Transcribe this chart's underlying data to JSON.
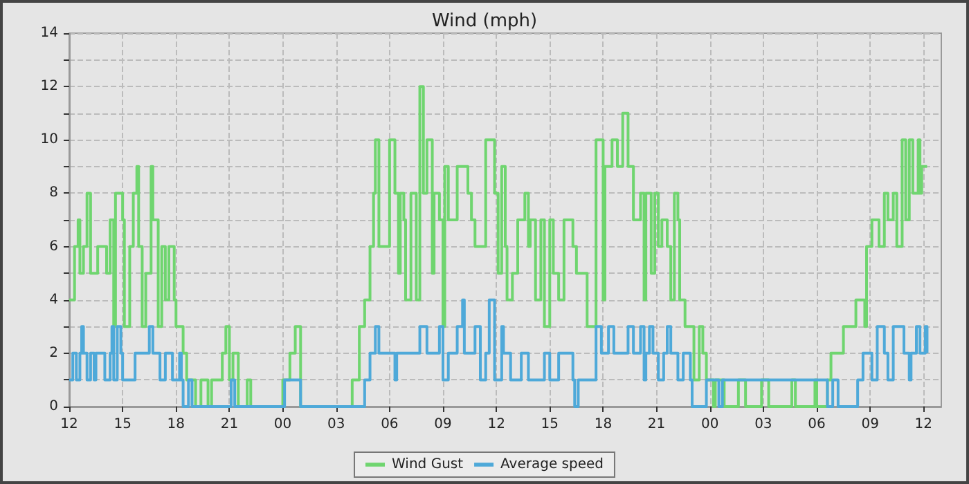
{
  "chart_data": {
    "type": "step",
    "title": "Wind (mph)",
    "xlim": [
      "--01-01T12:00",
      "--01-03T13:00"
    ],
    "xticks": [
      {
        "value": "--01-01T12:00",
        "label": "12"
      },
      {
        "value": "--01-01T15:00",
        "label": "15"
      },
      {
        "value": "--01-01T18:00",
        "label": "18"
      },
      {
        "value": "--01-01T21:00",
        "label": "21"
      },
      {
        "value": "--01-02T00:00",
        "label": "00"
      },
      {
        "value": "--01-02T03:00",
        "label": "03"
      },
      {
        "value": "--01-02T06:00",
        "label": "06"
      },
      {
        "value": "--01-02T09:00",
        "label": "09"
      },
      {
        "value": "--01-02T12:00",
        "label": "12"
      },
      {
        "value": "--01-02T15:00",
        "label": "15"
      },
      {
        "value": "--01-02T18:00",
        "label": "18"
      },
      {
        "value": "--01-02T21:00",
        "label": "21"
      },
      {
        "value": "--01-03T00:00",
        "label": "00"
      },
      {
        "value": "--01-03T03:00",
        "label": "03"
      },
      {
        "value": "--01-03T06:00",
        "label": "06"
      },
      {
        "value": "--01-03T09:00",
        "label": "09"
      },
      {
        "value": "--01-03T12:00",
        "label": "12"
      }
    ],
    "ylim": [
      0,
      14
    ],
    "yticks": [
      0,
      {
        "value": 1,
        "label": null
      },
      2,
      {
        "value": 3,
        "label": null
      },
      4,
      {
        "value": 5,
        "label": null
      },
      6,
      {
        "value": 7,
        "label": null
      },
      8,
      {
        "value": 9,
        "label": null
      },
      10,
      {
        "value": 11,
        "label": null
      },
      12,
      {
        "value": 13,
        "label": null
      },
      14
    ],
    "grid": true,
    "legend": "bottom",
    "marker": "none",
    "line_style": "solid",
    "series": [
      {
        "name": "Wind Gust",
        "color": "#6fd56f",
        "x": [
          "--01-01T12:00",
          "--01-01T12:18",
          "--01-01T12:30",
          "--01-01T12:36",
          "--01-01T12:48",
          "--01-01T13:00",
          "--01-01T13:12",
          "--01-01T13:36",
          "--01-01T14:06",
          "--01-01T14:18",
          "--01-01T14:30",
          "--01-01T14:36",
          "--01-01T15:00",
          "--01-01T15:06",
          "--01-01T15:24",
          "--01-01T15:36",
          "--01-01T15:48",
          "--01-01T15:54",
          "--01-01T16:06",
          "--01-01T16:18",
          "--01-01T16:36",
          "--01-01T16:42",
          "--01-01T17:00",
          "--01-01T17:12",
          "--01-01T17:24",
          "--01-01T17:36",
          "--01-01T17:54",
          "--01-01T18:00",
          "--01-01T18:24",
          "--01-01T18:36",
          "--01-01T19:06",
          "--01-01T19:24",
          "--01-01T19:48",
          "--01-01T20:00",
          "--01-01T20:36",
          "--01-01T20:48",
          "--01-01T21:00",
          "--01-01T21:12",
          "--01-01T21:30",
          "--01-01T22:00",
          "--01-01T22:12",
          "--01-02T00:00",
          "--01-02T00:24",
          "--01-02T00:42",
          "--01-02T01:00",
          "--01-02T03:54",
          "--01-02T04:18",
          "--01-02T04:36",
          "--01-02T04:54",
          "--01-02T05:06",
          "--01-02T05:12",
          "--01-02T05:24",
          "--01-02T06:00",
          "--01-02T06:18",
          "--01-02T06:30",
          "--01-02T06:36",
          "--01-02T06:48",
          "--01-02T06:54",
          "--01-02T07:12",
          "--01-02T07:30",
          "--01-02T07:42",
          "--01-02T07:54",
          "--01-02T08:06",
          "--01-02T08:24",
          "--01-02T08:30",
          "--01-02T08:48",
          "--01-02T09:00",
          "--01-02T09:06",
          "--01-02T09:18",
          "--01-02T09:48",
          "--01-02T10:24",
          "--01-02T10:36",
          "--01-02T10:48",
          "--01-02T11:24",
          "--01-02T11:54",
          "--01-02T12:06",
          "--01-02T12:18",
          "--01-02T12:30",
          "--01-02T12:36",
          "--01-02T12:54",
          "--01-02T13:12",
          "--01-02T13:36",
          "--01-02T13:48",
          "--01-02T13:54",
          "--01-02T14:12",
          "--01-02T14:30",
          "--01-02T14:42",
          "--01-02T15:00",
          "--01-02T15:12",
          "--01-02T15:30",
          "--01-02T15:48",
          "--01-02T16:18",
          "--01-02T16:30",
          "--01-02T17:06",
          "--01-02T17:36",
          "--01-02T18:00",
          "--01-02T18:06",
          "--01-02T18:30",
          "--01-02T18:48",
          "--01-02T19:06",
          "--01-02T19:24",
          "--01-02T19:42",
          "--01-02T20:06",
          "--01-02T20:18",
          "--01-02T20:24",
          "--01-02T20:42",
          "--01-02T20:54",
          "--01-02T21:06",
          "--01-02T21:18",
          "--01-02T21:36",
          "--01-02T21:48",
          "--01-02T22:00",
          "--01-02T22:12",
          "--01-02T22:18",
          "--01-02T22:36",
          "--01-02T23:06",
          "--01-02T23:24",
          "--01-02T23:36",
          "--01-02T23:48",
          "--01-03T00:12",
          "--01-03T00:18",
          "--01-03T00:48",
          "--01-03T01:36",
          "--01-03T02:00",
          "--01-03T02:54",
          "--01-03T03:18",
          "--01-03T04:36",
          "--01-03T04:48",
          "--01-03T05:54",
          "--01-03T06:00",
          "--01-03T06:36",
          "--01-03T06:48",
          "--01-03T07:30",
          "--01-03T08:12",
          "--01-03T08:42",
          "--01-03T08:48",
          "--01-03T09:06",
          "--01-03T09:30",
          "--01-03T09:48",
          "--01-03T10:00",
          "--01-03T10:18",
          "--01-03T10:30",
          "--01-03T10:48",
          "--01-03T11:00",
          "--01-03T11:12",
          "--01-03T11:24",
          "--01-03T11:42",
          "--01-03T11:48",
          "--01-03T11:54",
          "--01-03T12:12"
        ],
        "values": [
          4,
          6,
          7,
          5,
          6,
          8,
          5,
          6,
          5,
          7,
          3,
          8,
          7,
          3,
          6,
          8,
          9,
          6,
          3,
          5,
          9,
          7,
          3,
          6,
          4,
          6,
          4,
          3,
          2,
          1,
          0,
          1,
          0,
          1,
          2,
          3,
          1,
          2,
          0,
          1,
          0,
          1,
          2,
          3,
          0,
          1,
          3,
          4,
          6,
          8,
          10,
          6,
          10,
          8,
          5,
          8,
          7,
          4,
          8,
          4,
          12,
          8,
          10,
          5,
          8,
          7,
          3,
          9,
          7,
          9,
          8,
          7,
          6,
          10,
          8,
          5,
          9,
          6,
          4,
          5,
          7,
          8,
          6,
          7,
          4,
          7,
          3,
          7,
          5,
          4,
          7,
          6,
          5,
          3,
          10,
          4,
          9,
          10,
          9,
          11,
          9,
          7,
          8,
          4,
          8,
          5,
          8,
          6,
          7,
          6,
          4,
          8,
          7,
          4,
          3,
          1,
          3,
          2,
          1,
          0,
          1,
          0,
          1,
          0,
          1,
          0,
          1,
          0,
          1,
          0,
          1,
          2,
          3,
          4,
          3,
          6,
          7,
          6,
          8,
          7,
          8,
          6,
          10,
          7,
          10,
          8,
          10,
          8,
          9,
          9
        ]
      },
      {
        "name": "Average speed",
        "color": "#4ea9d9",
        "x": [
          "--01-01T12:00",
          "--01-01T12:12",
          "--01-01T12:24",
          "--01-01T12:36",
          "--01-01T12:42",
          "--01-01T12:48",
          "--01-01T13:00",
          "--01-01T13:12",
          "--01-01T13:24",
          "--01-01T13:30",
          "--01-01T14:00",
          "--01-01T14:18",
          "--01-01T14:24",
          "--01-01T14:30",
          "--01-01T14:42",
          "--01-01T14:54",
          "--01-01T15:00",
          "--01-01T15:42",
          "--01-01T16:30",
          "--01-01T16:42",
          "--01-01T17:06",
          "--01-01T17:24",
          "--01-01T17:48",
          "--01-01T18:12",
          "--01-01T18:18",
          "--01-01T18:24",
          "--01-01T18:42",
          "--01-01T18:54",
          "--01-01T21:06",
          "--01-01T21:18",
          "--01-02T00:06",
          "--01-02T00:54",
          "--01-02T01:00",
          "--01-02T04:36",
          "--01-02T04:54",
          "--01-02T05:12",
          "--01-02T05:24",
          "--01-02T06:18",
          "--01-02T06:24",
          "--01-02T07:42",
          "--01-02T08:06",
          "--01-02T08:48",
          "--01-02T09:00",
          "--01-02T09:18",
          "--01-02T09:48",
          "--01-02T10:06",
          "--01-02T10:12",
          "--01-02T10:48",
          "--01-02T11:06",
          "--01-02T11:24",
          "--01-02T11:36",
          "--01-02T11:54",
          "--01-02T12:18",
          "--01-02T12:24",
          "--01-02T12:48",
          "--01-02T13:24",
          "--01-02T13:48",
          "--01-02T14:42",
          "--01-02T15:00",
          "--01-02T15:30",
          "--01-02T16:18",
          "--01-02T16:24",
          "--01-02T16:36",
          "--01-02T17:36",
          "--01-02T17:54",
          "--01-02T18:18",
          "--01-02T18:36",
          "--01-02T19:24",
          "--01-02T19:42",
          "--01-02T20:06",
          "--01-02T20:18",
          "--01-02T20:24",
          "--01-02T20:36",
          "--01-02T20:48",
          "--01-02T21:06",
          "--01-02T21:24",
          "--01-02T21:36",
          "--01-02T21:48",
          "--01-02T22:12",
          "--01-02T22:30",
          "--01-02T22:54",
          "--01-02T23:00",
          "--01-02T23:48",
          "--01-03T00:30",
          "--01-03T00:42",
          "--01-03T06:36",
          "--01-03T06:54",
          "--01-03T07:12",
          "--01-03T08:18",
          "--01-03T08:36",
          "--01-03T09:06",
          "--01-03T09:24",
          "--01-03T09:48",
          "--01-03T10:00",
          "--01-03T10:18",
          "--01-03T10:54",
          "--01-03T11:12",
          "--01-03T11:18",
          "--01-03T11:36",
          "--01-03T11:48",
          "--01-03T12:06",
          "--01-03T12:12"
        ],
        "values": [
          1,
          2,
          1,
          2,
          3,
          2,
          1,
          2,
          1,
          2,
          1,
          2,
          3,
          1,
          3,
          2,
          1,
          2,
          3,
          2,
          1,
          2,
          1,
          2,
          1,
          0,
          1,
          0,
          1,
          0,
          1,
          1,
          0,
          1,
          2,
          3,
          2,
          1,
          2,
          3,
          2,
          3,
          1,
          2,
          3,
          4,
          2,
          3,
          1,
          2,
          4,
          1,
          3,
          2,
          1,
          2,
          1,
          2,
          1,
          2,
          1,
          0,
          1,
          3,
          2,
          3,
          2,
          3,
          2,
          3,
          1,
          2,
          3,
          2,
          1,
          2,
          3,
          2,
          1,
          2,
          1,
          0,
          1,
          0,
          1,
          0,
          1,
          0,
          1,
          2,
          1,
          3,
          2,
          1,
          3,
          2,
          1,
          2,
          3,
          2,
          3,
          2
        ]
      }
    ]
  }
}
